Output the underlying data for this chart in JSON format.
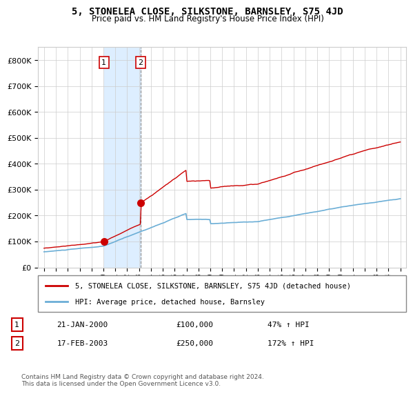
{
  "title": "5, STONELEA CLOSE, SILKSTONE, BARNSLEY, S75 4JD",
  "subtitle": "Price paid vs. HM Land Registry's House Price Index (HPI)",
  "sale1_date": 2000.05,
  "sale1_price": 100000,
  "sale1_label": "1",
  "sale1_pct": "47% ↑ HPI",
  "sale1_display": "21-JAN-2000",
  "sale2_date": 2003.12,
  "sale2_price": 250000,
  "sale2_label": "2",
  "sale2_pct": "172% ↑ HPI",
  "sale2_display": "17-FEB-2003",
  "hpi_color": "#6baed6",
  "price_color": "#cc0000",
  "shade_color": "#ddeeff",
  "legend_label1": "5, STONELEA CLOSE, SILKSTONE, BARNSLEY, S75 4JD (detached house)",
  "legend_label2": "HPI: Average price, detached house, Barnsley",
  "footer": "Contains HM Land Registry data © Crown copyright and database right 2024.\nThis data is licensed under the Open Government Licence v3.0.",
  "ylim": [
    0,
    850000
  ],
  "yticks": [
    0,
    100000,
    200000,
    300000,
    400000,
    500000,
    600000,
    700000,
    800000
  ],
  "ytick_labels": [
    "£0",
    "£100K",
    "£200K",
    "£300K",
    "£400K",
    "£500K",
    "£600K",
    "£700K",
    "£800K"
  ],
  "xlim_start": 1994.5,
  "xlim_end": 2025.5
}
